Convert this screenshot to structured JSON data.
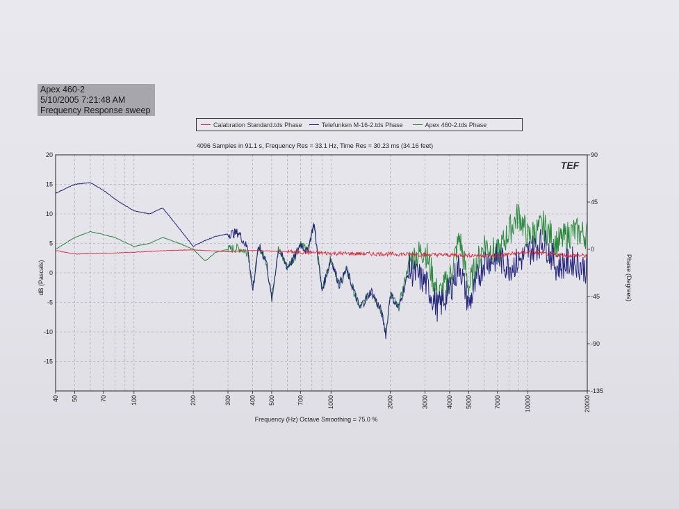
{
  "info": {
    "line1": "Apex 460-2",
    "line2": "5/10/2005 7:21:48 AM",
    "line3": "Frequency Response sweep"
  },
  "logo_text": "TEF",
  "colors": {
    "calibration": "#d8283a",
    "telefunken": "#25257e",
    "apex": "#2c8a3e",
    "grid": "#9a9aa2",
    "axis": "#222222"
  },
  "chart_data": {
    "type": "line",
    "title": "4096 Samples in 91.1 s, Frequency Res = 33.1 Hz, Time Res = 30.23 ms (34.16 feet)",
    "xlabel": "Frequency (Hz) Octave Smoothing = 75.0 %",
    "ylabel": "dB (Pascals)",
    "y2label": "Phase (Degrees)",
    "x_scale": "log",
    "xlim": [
      40,
      20000
    ],
    "ylim": [
      -20,
      20
    ],
    "y2lim": [
      -135,
      90
    ],
    "x_ticks": [
      "40",
      "50",
      "70",
      "100",
      "200",
      "300",
      "400",
      "500",
      "700",
      "1000",
      "2000",
      "3000",
      "4000",
      "5000",
      "7000",
      "10000",
      "20000"
    ],
    "x_tick_values": [
      40,
      50,
      70,
      100,
      200,
      300,
      400,
      500,
      700,
      1000,
      2000,
      3000,
      4000,
      5000,
      7000,
      10000,
      20000
    ],
    "y_ticks": [
      "20",
      "15",
      "10",
      "5",
      "0",
      "-5",
      "-10",
      "-15"
    ],
    "y_tick_values": [
      20,
      15,
      10,
      5,
      0,
      -5,
      -10,
      -15
    ],
    "y2_ticks": [
      "90",
      "45",
      "0",
      "-45",
      "-90",
      "-135"
    ],
    "y2_tick_values": [
      90,
      45,
      0,
      -45,
      -90,
      -135
    ],
    "grid": true,
    "legend_position": "top",
    "series": [
      {
        "name": "Calabration Standard.tds Phase",
        "color_key": "calibration",
        "x": [
          40,
          50,
          70,
          100,
          150,
          200,
          300,
          400,
          600,
          1000,
          2000,
          3000,
          5000,
          7000,
          10000,
          13000,
          20000
        ],
        "y": [
          3.8,
          3.2,
          3.3,
          3.5,
          3.8,
          3.9,
          3.6,
          3.8,
          3.6,
          3.3,
          3.2,
          3.1,
          3.0,
          2.9,
          3.6,
          3.1,
          2.9
        ]
      },
      {
        "name": "Telefunken M-16-2.tds Phase",
        "color_key": "telefunken",
        "x": [
          40,
          50,
          60,
          70,
          80,
          100,
          120,
          140,
          170,
          200,
          230,
          260,
          300,
          340,
          380,
          400,
          430,
          470,
          500,
          540,
          600,
          650,
          700,
          760,
          820,
          900,
          1000,
          1100,
          1200,
          1400,
          1600,
          1800,
          1900,
          2000,
          2200,
          2500,
          3000,
          3500,
          4000,
          4500,
          5000,
          6000,
          7000,
          8000,
          9000,
          10000,
          12000,
          14000,
          17000,
          20000
        ],
        "y": [
          13.5,
          15.0,
          15.3,
          14.0,
          12.5,
          10.5,
          10.0,
          11.0,
          7.5,
          4.5,
          5.5,
          6.2,
          6.6,
          6.8,
          4.0,
          -3.0,
          4.5,
          2.0,
          -4.5,
          4.0,
          1.0,
          2.5,
          5.0,
          3.5,
          8.5,
          -3.0,
          2.5,
          -2.0,
          0.5,
          -6.0,
          -3.0,
          -6.5,
          -10.5,
          -3.5,
          -6.0,
          0.5,
          -1.5,
          -6.0,
          -3.0,
          1.5,
          -5.5,
          2.0,
          2.5,
          1.0,
          2.0,
          3.5,
          5.5,
          1.0,
          2.0,
          0.5
        ]
      },
      {
        "name": "Apex 460-2.tds Phase",
        "color_key": "apex",
        "x": [
          40,
          50,
          60,
          70,
          80,
          100,
          120,
          140,
          170,
          200,
          230,
          260,
          300,
          340,
          380,
          400,
          430,
          470,
          500,
          540,
          600,
          650,
          700,
          760,
          820,
          900,
          1000,
          1100,
          1200,
          1400,
          1600,
          1800,
          1900,
          2000,
          2200,
          2500,
          3000,
          3500,
          4000,
          4500,
          5000,
          6000,
          7000,
          8000,
          9000,
          10000,
          12000,
          14000,
          17000,
          20000
        ],
        "y": [
          4.0,
          6.0,
          7.0,
          6.5,
          6.0,
          4.5,
          5.0,
          6.0,
          5.0,
          4.0,
          2.0,
          3.5,
          4.0,
          4.2,
          3.5,
          -3.0,
          4.5,
          2.0,
          -4.5,
          4.0,
          1.0,
          2.5,
          5.0,
          3.5,
          8.5,
          -3.0,
          2.5,
          -2.0,
          0.5,
          -6.0,
          -3.0,
          -6.5,
          -10.5,
          -3.5,
          -6.0,
          2.0,
          4.0,
          -4.0,
          -1.0,
          6.0,
          -2.5,
          5.0,
          3.0,
          7.0,
          10.0,
          6.0,
          8.0,
          5.0,
          7.0,
          6.5
        ]
      }
    ]
  }
}
